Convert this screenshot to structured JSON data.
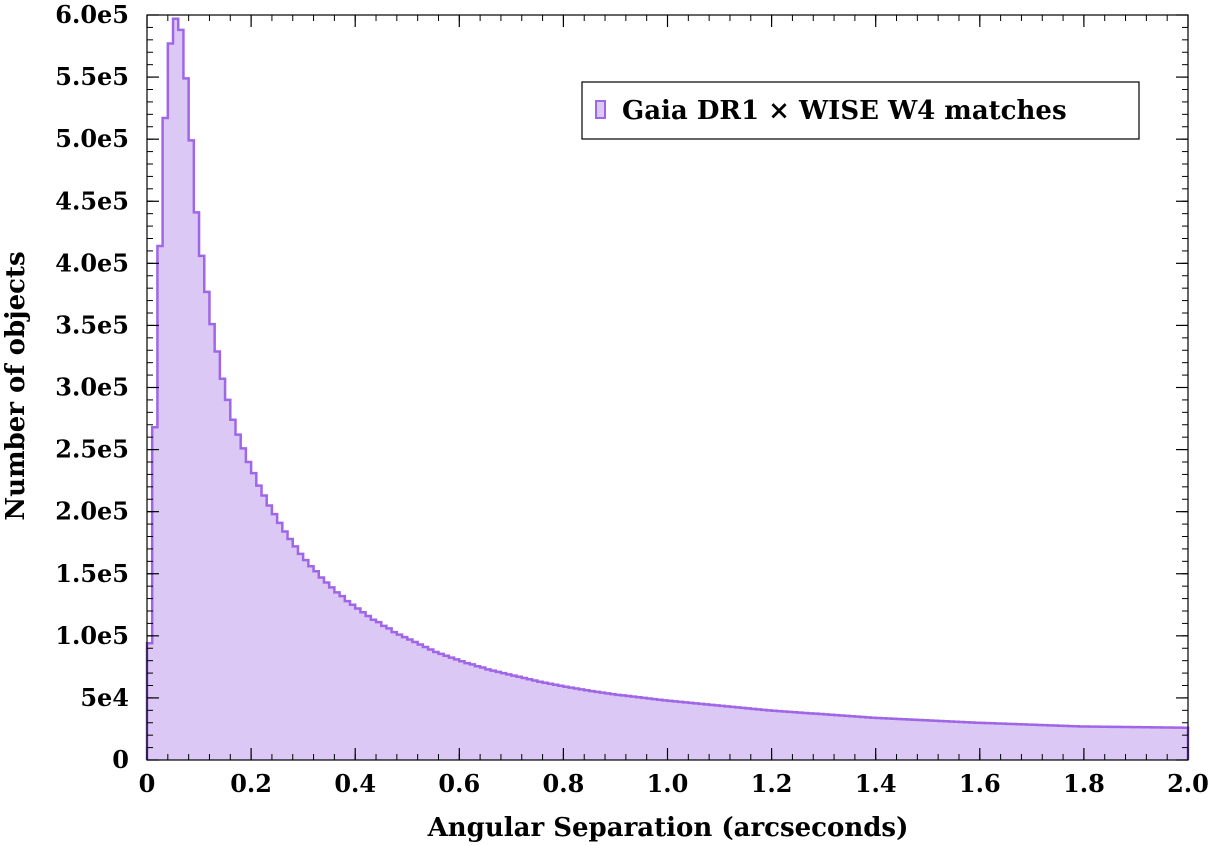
{
  "chart_data": {
    "type": "area",
    "title": "",
    "xlabel": "Angular  Separation  (arcseconds)",
    "ylabel": "Number  of  objects",
    "xlim": [
      0,
      2.0
    ],
    "ylim": [
      0,
      600000
    ],
    "x_ticks": [
      0,
      0.2,
      0.4,
      0.6,
      0.8,
      1.0,
      1.2,
      1.4,
      1.6,
      1.8,
      2.0
    ],
    "x_tick_labels": [
      "0",
      "0.2",
      "0.4",
      "0.6",
      "0.8",
      "1.0",
      "1.2",
      "1.4",
      "1.6",
      "1.8",
      "2.0"
    ],
    "y_ticks": [
      0,
      50000,
      100000,
      150000,
      200000,
      250000,
      300000,
      350000,
      400000,
      450000,
      500000,
      550000,
      600000
    ],
    "y_tick_labels": [
      "0",
      "5e4",
      "1.0e5",
      "1.5e5",
      "2.0e5",
      "2.5e5",
      "3.0e5",
      "3.5e5",
      "4.0e5",
      "4.5e5",
      "5.0e5",
      "5.5e5",
      "6.0e5"
    ],
    "grid": false,
    "legend_position": "top-right",
    "series": [
      {
        "name": "Gaia DR1 × WISE W4 matches",
        "style": "step histogram",
        "fill_color": "#dcc8f5",
        "line_color": "#a066e8",
        "bin_width": 0.01,
        "x_start": 0,
        "values": [
          94000,
          268000,
          414000,
          517000,
          577000,
          597000,
          588000,
          549000,
          499000,
          441000,
          406000,
          377000,
          351000,
          329000,
          307000,
          290000,
          274000,
          262000,
          251000,
          240000,
          231000,
          221000,
          213000,
          205000,
          198000,
          191000,
          184000,
          178000,
          172000,
          166000,
          161000,
          156000,
          152000,
          147000,
          143000,
          139000,
          135000,
          132000,
          128000,
          125000,
          122000,
          119000,
          116000,
          113000,
          111000,
          108000,
          106000,
          103000,
          101000,
          99000,
          97000,
          95000,
          93000,
          91000,
          89000,
          87000,
          85500,
          84000,
          82500,
          81000,
          79500,
          78000,
          77000,
          75500,
          74500,
          73000,
          72000,
          71000,
          70000,
          69000,
          68000,
          67000,
          66000,
          65000,
          64000,
          63000,
          62200,
          61400,
          60600,
          59800,
          59000,
          58300,
          57600,
          56900,
          56200,
          55500,
          54900,
          54300,
          53700,
          53100,
          52500,
          52000,
          51500,
          51000,
          50500,
          50000,
          49500,
          49000,
          48500,
          48000,
          47600,
          47200,
          46800,
          46400,
          46000,
          45600,
          45200,
          44800,
          44400,
          44000,
          43600,
          43200,
          42800,
          42400,
          42000,
          41600,
          41200,
          40800,
          40400,
          40000,
          39700,
          39400,
          39100,
          38800,
          38500,
          38200,
          37900,
          37600,
          37300,
          37000,
          36700,
          36400,
          36100,
          35800,
          35500,
          35200,
          34900,
          34600,
          34300,
          34000,
          33800,
          33600,
          33400,
          33200,
          33000,
          32800,
          32600,
          32400,
          32200,
          32000,
          31800,
          31600,
          31400,
          31200,
          31000,
          30800,
          30600,
          30400,
          30200,
          30000,
          29850,
          29700,
          29550,
          29400,
          29250,
          29100,
          28950,
          28800,
          28650,
          28500,
          28350,
          28200,
          28050,
          27900,
          27750,
          27600,
          27450,
          27300,
          27150,
          27000,
          26950,
          26900,
          26850,
          26800,
          26750,
          26700,
          26650,
          26600,
          26550,
          26500,
          26450,
          26400,
          26350,
          26300,
          26250,
          26200,
          26150,
          26100,
          26050,
          26000
        ]
      }
    ]
  }
}
